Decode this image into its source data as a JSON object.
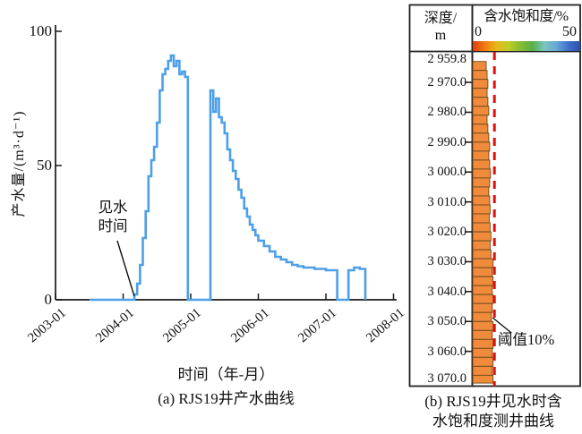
{
  "panel_a": {
    "caption": "(a) RJS19井产水曲线",
    "x_label": "时间（年-月）",
    "y_label": "产水量/(m³·d⁻¹)",
    "annotation": "见水\n时间",
    "x_ticks": [
      "2003-01",
      "2004-01",
      "2005-01",
      "2006-01",
      "2007-01",
      "2008-01"
    ],
    "y_ticks": [
      "0",
      "50",
      "100"
    ],
    "line_color": "#4D9FE8",
    "axis_color": "#1a1a1a"
  },
  "panel_b": {
    "caption": "(b) RJS19井见水时含\n水饱和度测井曲线",
    "depth_header": "深度/\nm",
    "sat_header": "含水饱和度/%",
    "sat_min_label": "0",
    "sat_max_label": "50",
    "threshold_label": "阈值10%",
    "depth_tick_labels": [
      "2 959.8",
      "2 970.0",
      "2 980.0",
      "2 990.0",
      "3 000.0",
      "3 010.0",
      "3 020.0",
      "3 030.0",
      "3 040.0",
      "3 050.0",
      "3 060.0",
      "3 070.0"
    ],
    "bar_color": "#F08B3C",
    "bar_border_color": "#6b4a1b",
    "threshold_line_color": "#E01010",
    "gradient_colors": [
      "#e03c08",
      "#f07c10",
      "#e8b81c",
      "#c0cc28",
      "#84bc34",
      "#58b048",
      "#7cc4c0",
      "#68a8d8",
      "#4070c8",
      "#2c50b0"
    ]
  },
  "chart_data": [
    {
      "type": "line",
      "step": true,
      "title": "(a) RJS19井产水曲线",
      "xlabel": "时间（年-月）",
      "ylabel": "产水量/(m³·d⁻¹)",
      "ylim": [
        0,
        100
      ],
      "x_range": [
        "2003-01",
        "2008-01"
      ],
      "legend": "none",
      "grid": false,
      "annotations": [
        {
          "text": "见水时间",
          "points_to_x": "2004-03",
          "points_to_y": 0
        }
      ],
      "series": [
        {
          "name": "产水量",
          "points": [
            [
              "2003-07-01",
              0
            ],
            [
              "2004-03-01",
              2
            ],
            [
              "2004-03-16",
              6
            ],
            [
              "2004-04-01",
              13
            ],
            [
              "2004-04-16",
              23
            ],
            [
              "2004-05-01",
              33
            ],
            [
              "2004-05-16",
              46
            ],
            [
              "2004-06-01",
              52
            ],
            [
              "2004-06-16",
              57
            ],
            [
              "2004-07-01",
              66
            ],
            [
              "2004-07-16",
              78
            ],
            [
              "2004-08-01",
              84
            ],
            [
              "2004-08-16",
              86
            ],
            [
              "2004-09-01",
              89
            ],
            [
              "2004-09-16",
              91
            ],
            [
              "2004-10-01",
              87
            ],
            [
              "2004-10-16",
              89
            ],
            [
              "2004-11-01",
              84
            ],
            [
              "2004-11-16",
              85
            ],
            [
              "2004-12-01",
              83
            ],
            [
              "2004-12-16",
              0
            ],
            [
              "2005-04-16",
              78
            ],
            [
              "2005-05-01",
              70
            ],
            [
              "2005-05-16",
              75
            ],
            [
              "2005-06-01",
              68
            ],
            [
              "2005-06-16",
              66
            ],
            [
              "2005-07-01",
              62
            ],
            [
              "2005-07-16",
              56
            ],
            [
              "2005-08-01",
              52
            ],
            [
              "2005-08-16",
              48
            ],
            [
              "2005-09-01",
              45
            ],
            [
              "2005-09-16",
              41
            ],
            [
              "2005-10-01",
              38
            ],
            [
              "2005-10-16",
              34
            ],
            [
              "2005-11-01",
              31
            ],
            [
              "2005-11-16",
              28
            ],
            [
              "2005-12-01",
              26
            ],
            [
              "2005-12-16",
              24
            ],
            [
              "2006-01-01",
              22
            ],
            [
              "2006-02-01",
              20
            ],
            [
              "2006-03-01",
              18
            ],
            [
              "2006-04-01",
              16
            ],
            [
              "2006-05-01",
              15
            ],
            [
              "2006-06-01",
              14
            ],
            [
              "2006-07-01",
              13
            ],
            [
              "2006-08-01",
              12.5
            ],
            [
              "2006-09-01",
              12
            ],
            [
              "2006-10-01",
              12
            ],
            [
              "2006-11-01",
              11.5
            ],
            [
              "2006-12-01",
              11.5
            ],
            [
              "2007-01-01",
              11
            ],
            [
              "2007-02-01",
              11
            ],
            [
              "2007-03-01",
              0
            ],
            [
              "2007-05-01",
              11
            ],
            [
              "2007-06-01",
              12
            ],
            [
              "2007-07-01",
              11.5
            ],
            [
              "2007-08-01",
              0
            ]
          ]
        }
      ]
    },
    {
      "type": "bar",
      "orientation": "horizontal",
      "title": "(b) RJS19井见水时含水饱和度测井曲线",
      "xlabel": "含水饱和度/%",
      "ylabel": "深度/m",
      "xlim": [
        0,
        50
      ],
      "depth_range": [
        2959.8,
        3070.0
      ],
      "threshold": {
        "label": "阈值10%",
        "value": 10
      },
      "segments_depth_top_bottom_sat": [
        [
          2963,
          2966,
          6.2
        ],
        [
          2966,
          2969,
          6.6
        ],
        [
          2969,
          2972,
          7.0
        ],
        [
          2972,
          2975,
          6.6
        ],
        [
          2975,
          2978,
          7.0
        ],
        [
          2978,
          2981,
          7.4
        ],
        [
          2981,
          2984,
          6.6
        ],
        [
          2984,
          2987,
          7.0
        ],
        [
          2987,
          2990,
          7.4
        ],
        [
          2990,
          2993,
          7.8
        ],
        [
          2993,
          2996,
          7.4
        ],
        [
          2996,
          2999,
          7.8
        ],
        [
          2999,
          3002,
          8.2
        ],
        [
          3002,
          3005,
          7.8
        ],
        [
          3005,
          3008,
          7.4
        ],
        [
          3008,
          3011,
          7.8
        ],
        [
          3011,
          3014,
          8.0
        ],
        [
          3014,
          3017,
          7.6
        ],
        [
          3017,
          3020,
          8.0
        ],
        [
          3020,
          3023,
          8.4
        ],
        [
          3023,
          3026,
          8.0
        ],
        [
          3026,
          3029,
          8.4
        ],
        [
          3029,
          3032,
          9.4
        ],
        [
          3032,
          3035,
          9.0
        ],
        [
          3035,
          3038,
          9.4
        ],
        [
          3038,
          3041,
          9.0
        ],
        [
          3041,
          3044,
          9.4
        ],
        [
          3044,
          3047,
          9.0
        ],
        [
          3047,
          3050,
          8.6
        ],
        [
          3050,
          3053,
          9.4
        ],
        [
          3053,
          3056,
          9.0
        ],
        [
          3056,
          3059,
          9.4
        ],
        [
          3059,
          3062,
          9.0
        ],
        [
          3062,
          3065,
          9.4
        ],
        [
          3065,
          3068,
          9.0
        ],
        [
          3068,
          3070.6,
          9.4
        ]
      ]
    }
  ]
}
